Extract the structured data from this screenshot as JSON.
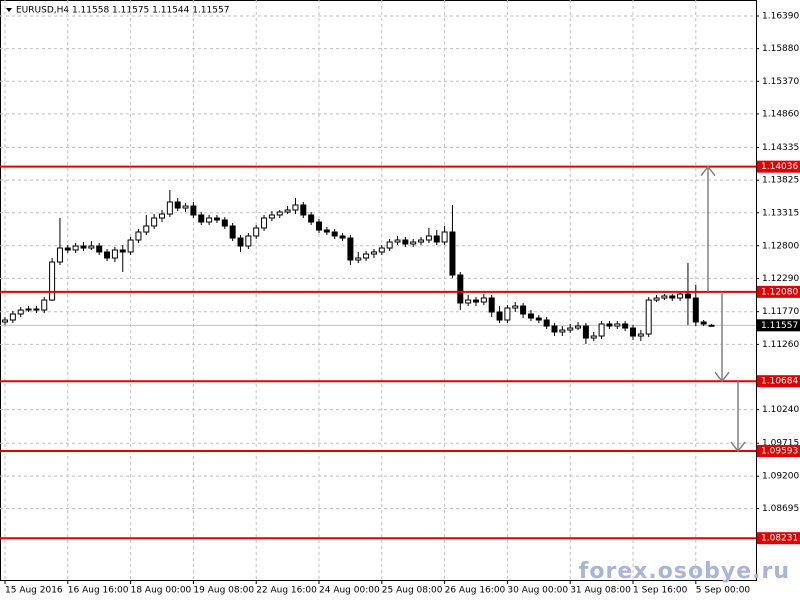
{
  "chart_data": {
    "type": "candlestick",
    "title": "EURUSD,H4  1.11558 1.11575 1.11544 1.11557",
    "ohlc": [
      [
        1.11609,
        1.11687,
        1.11562,
        1.1164
      ],
      [
        1.1164,
        1.11781,
        1.11593,
        1.11734
      ],
      [
        1.11734,
        1.11843,
        1.11687,
        1.11796
      ],
      [
        1.11796,
        1.11859,
        1.11765,
        1.11812
      ],
      [
        1.11812,
        1.11859,
        1.1175,
        1.11796
      ],
      [
        1.11796,
        1.11999,
        1.1175,
        1.11952
      ],
      [
        1.11952,
        1.12609,
        1.11937,
        1.12546
      ],
      [
        1.12546,
        1.13234,
        1.12499,
        1.12765
      ],
      [
        1.12765,
        1.12812,
        1.12687,
        1.12734
      ],
      [
        1.12734,
        1.12843,
        1.12687,
        1.12796
      ],
      [
        1.12796,
        1.12859,
        1.12718,
        1.12765
      ],
      [
        1.12765,
        1.12874,
        1.12734,
        1.12796
      ],
      [
        1.12796,
        1.12843,
        1.12656,
        1.12703
      ],
      [
        1.12703,
        1.1275,
        1.12562,
        1.12609
      ],
      [
        1.12609,
        1.12781,
        1.12546,
        1.12734
      ],
      [
        1.12734,
        1.12812,
        1.1239,
        1.12703
      ],
      [
        1.12703,
        1.12937,
        1.12656,
        1.1289
      ],
      [
        1.1289,
        1.13062,
        1.12843,
        1.13015
      ],
      [
        1.13015,
        1.13281,
        1.12968,
        1.13109
      ],
      [
        1.13109,
        1.13296,
        1.13062,
        1.13234
      ],
      [
        1.13234,
        1.13359,
        1.13171,
        1.13296
      ],
      [
        1.13296,
        1.13671,
        1.13249,
        1.13484
      ],
      [
        1.13484,
        1.13546,
        1.13343,
        1.1339
      ],
      [
        1.1339,
        1.13468,
        1.13328,
        1.13421
      ],
      [
        1.13421,
        1.13484,
        1.13234,
        1.13281
      ],
      [
        1.13281,
        1.13328,
        1.13124,
        1.13171
      ],
      [
        1.13171,
        1.13281,
        1.13124,
        1.13234
      ],
      [
        1.13234,
        1.13281,
        1.13156,
        1.13203
      ],
      [
        1.13203,
        1.13249,
        1.13062,
        1.13109
      ],
      [
        1.13109,
        1.13156,
        1.12874,
        1.12921
      ],
      [
        1.12921,
        1.12968,
        1.12703,
        1.12796
      ],
      [
        1.12796,
        1.13,
        1.1275,
        1.12953
      ],
      [
        1.12953,
        1.13124,
        1.12906,
        1.13078
      ],
      [
        1.13078,
        1.13281,
        1.13031,
        1.13234
      ],
      [
        1.13234,
        1.13343,
        1.13187,
        1.13281
      ],
      [
        1.13281,
        1.13359,
        1.13234,
        1.13328
      ],
      [
        1.13328,
        1.13421,
        1.13296,
        1.13359
      ],
      [
        1.13359,
        1.13546,
        1.13296,
        1.13437
      ],
      [
        1.13437,
        1.13484,
        1.13234,
        1.13281
      ],
      [
        1.13281,
        1.13328,
        1.13124,
        1.13171
      ],
      [
        1.13171,
        1.13218,
        1.13,
        1.13046
      ],
      [
        1.13046,
        1.13093,
        1.12968,
        1.13015
      ],
      [
        1.13015,
        1.13062,
        1.12906,
        1.12953
      ],
      [
        1.12953,
        1.13,
        1.12874,
        1.12921
      ],
      [
        1.12921,
        1.12968,
        1.12499,
        1.12578
      ],
      [
        1.12578,
        1.12703,
        1.12531,
        1.12609
      ],
      [
        1.12609,
        1.12718,
        1.12562,
        1.12671
      ],
      [
        1.12671,
        1.1275,
        1.12609,
        1.12703
      ],
      [
        1.12703,
        1.12812,
        1.12656,
        1.12765
      ],
      [
        1.12765,
        1.12906,
        1.12718,
        1.12859
      ],
      [
        1.12859,
        1.12953,
        1.12812,
        1.1289
      ],
      [
        1.1289,
        1.12937,
        1.12781,
        1.12828
      ],
      [
        1.12828,
        1.12906,
        1.12781,
        1.12859
      ],
      [
        1.12859,
        1.12937,
        1.12812,
        1.1289
      ],
      [
        1.1289,
        1.13078,
        1.12843,
        1.12953
      ],
      [
        1.12953,
        1.13046,
        1.12812,
        1.12859
      ],
      [
        1.12859,
        1.13109,
        1.12812,
        1.13015
      ],
      [
        1.13015,
        1.13437,
        1.12296,
        1.12343
      ],
      [
        1.12343,
        1.1239,
        1.11796,
        1.11906
      ],
      [
        1.11906,
        1.12031,
        1.11859,
        1.11952
      ],
      [
        1.11952,
        1.11999,
        1.11859,
        1.11921
      ],
      [
        1.11921,
        1.12046,
        1.11874,
        1.11984
      ],
      [
        1.11984,
        1.12031,
        1.11687,
        1.11765
      ],
      [
        1.11765,
        1.11859,
        1.11593,
        1.1164
      ],
      [
        1.1164,
        1.11874,
        1.11593,
        1.11828
      ],
      [
        1.11828,
        1.11921,
        1.11765,
        1.11859
      ],
      [
        1.11859,
        1.11906,
        1.11671,
        1.11734
      ],
      [
        1.11734,
        1.11796,
        1.11624,
        1.11671
      ],
      [
        1.11671,
        1.11718,
        1.11593,
        1.1164
      ],
      [
        1.1164,
        1.11687,
        1.115,
        1.11546
      ],
      [
        1.11546,
        1.11593,
        1.1139,
        1.11453
      ],
      [
        1.11453,
        1.11546,
        1.1139,
        1.11484
      ],
      [
        1.11484,
        1.11578,
        1.11437,
        1.11515
      ],
      [
        1.11515,
        1.11609,
        1.11484,
        1.11546
      ],
      [
        1.11546,
        1.11593,
        1.11265,
        1.11359
      ],
      [
        1.11359,
        1.11453,
        1.11312,
        1.1139
      ],
      [
        1.1139,
        1.11624,
        1.11343,
        1.11578
      ],
      [
        1.11578,
        1.11624,
        1.115,
        1.11546
      ],
      [
        1.11546,
        1.11624,
        1.115,
        1.11578
      ],
      [
        1.11578,
        1.11624,
        1.11468,
        1.11515
      ],
      [
        1.11515,
        1.11562,
        1.11328,
        1.1139
      ],
      [
        1.1139,
        1.11484,
        1.11312,
        1.11421
      ],
      [
        1.11421,
        1.11999,
        1.11374,
        1.11952
      ],
      [
        1.11952,
        1.12031,
        1.11921,
        1.11984
      ],
      [
        1.11984,
        1.12046,
        1.11952,
        1.12015
      ],
      [
        1.12015,
        1.12046,
        1.11937,
        1.11984
      ],
      [
        1.11984,
        1.12093,
        1.11937,
        1.12046
      ],
      [
        1.12046,
        1.12531,
        1.11562,
        1.11984
      ],
      [
        1.11984,
        1.12187,
        1.11546,
        1.11609
      ],
      [
        1.11609,
        1.1164,
        1.11546,
        1.11578
      ],
      [
        1.11558,
        1.11575,
        1.11544,
        1.11557
      ]
    ],
    "bull_color": "#ffffff",
    "bear_color": "#000000",
    "xticks": [
      {
        "value": 0,
        "label": "15 Aug 2016"
      },
      {
        "value": 8,
        "label": "16 Aug 16:00"
      },
      {
        "value": 16,
        "label": "18 Aug 00:00"
      },
      {
        "value": 24,
        "label": "19 Aug 08:00"
      },
      {
        "value": 32,
        "label": "22 Aug 16:00"
      },
      {
        "value": 40,
        "label": "24 Aug 00:00"
      },
      {
        "value": 48,
        "label": "25 Aug 08:00"
      },
      {
        "value": 56,
        "label": "26 Aug 16:00"
      },
      {
        "value": 64,
        "label": "30 Aug 00:00"
      },
      {
        "value": 72,
        "label": "31 Aug 08:00"
      },
      {
        "value": 80,
        "label": "1 Sep 16:00"
      },
      {
        "value": 88,
        "label": "5 Sep 00:00"
      }
    ],
    "ylim": [
      1.07578,
      1.1664
    ],
    "yticks": [
      {
        "value": 1.1639,
        "label": "1.16390"
      },
      {
        "value": 1.1588,
        "label": "1.15880"
      },
      {
        "value": 1.1537,
        "label": "1.15370"
      },
      {
        "value": 1.1486,
        "label": "1.14860"
      },
      1.14335,
      1.13825,
      1.13315,
      {
        "value": 1.128,
        "label": "1.12800"
      },
      {
        "value": 1.1229,
        "label": "1.12290"
      },
      {
        "value": 1.1177,
        "label": "1.11770"
      },
      {
        "value": 1.1126,
        "label": "1.11260"
      },
      {
        "value": 1.1024,
        "label": "1.10240"
      },
      1.09715,
      {
        "value": 1.092,
        "label": "1.09200"
      },
      1.08695
    ],
    "grid": true,
    "levels": {
      "color": "#e00000",
      "values": [
        {
          "value": 1.14036,
          "label": "1.14036"
        },
        {
          "value": 1.1208,
          "label": "1.12080"
        },
        {
          "value": 1.10684,
          "label": "1.10684"
        },
        {
          "value": 1.09593,
          "label": "1.09593"
        },
        {
          "value": 1.08231,
          "label": "1.08231"
        }
      ]
    },
    "last_price": 1.11557,
    "watermark": "forex.osobye.ru"
  }
}
